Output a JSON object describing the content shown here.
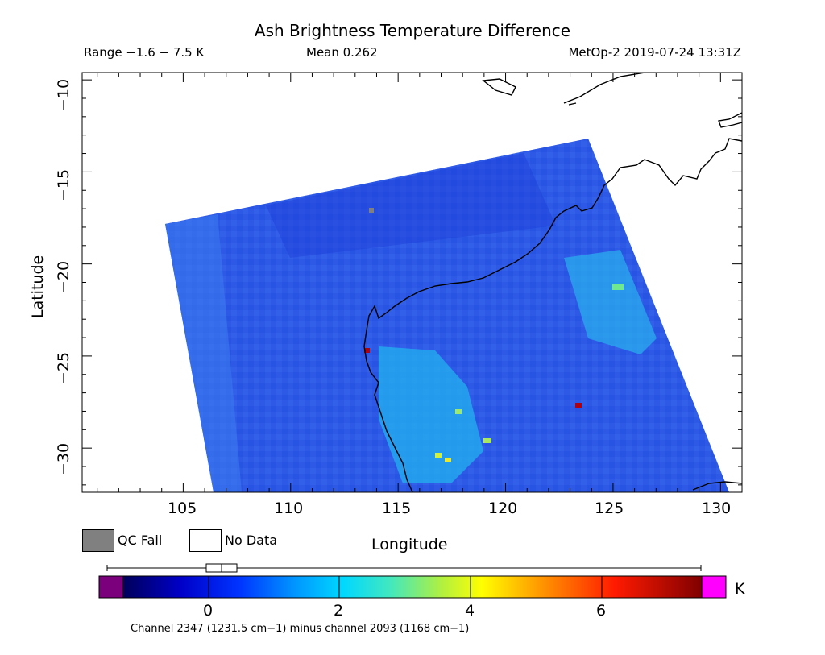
{
  "header": {
    "title": "Ash Brightness Temperature Difference",
    "range": "Range −1.6 − 7.5 K",
    "mean": "Mean 0.262",
    "satellite_time": "MetOp-2 2019-07-24 13:31Z"
  },
  "axes": {
    "xlabel": "Longitude",
    "ylabel": "Latitude",
    "xticks": [
      "105",
      "110",
      "115",
      "120",
      "125",
      "130"
    ],
    "yticks": [
      "−10",
      "−15",
      "−20",
      "−25",
      "−30"
    ],
    "lon_range": [
      100.3,
      131.0
    ],
    "lat_range": [
      -32.4,
      -9.6
    ]
  },
  "legend": {
    "qc_fail": "QC Fail",
    "no_data": "No Data",
    "qc_fail_color": "#808080",
    "no_data_color": "#ffffff"
  },
  "colorbar": {
    "unit": "K",
    "ticks": [
      "0",
      "2",
      "4",
      "6"
    ],
    "range": [
      -1.6,
      7.5
    ],
    "underflow_color": "#7b007b",
    "overflow_color": "#ff00ff",
    "caption": "Channel 2347 (1231.5 cm−1) minus channel 2093 (1168 cm−1)",
    "box_whisker": {
      "min": -1.6,
      "q1": -0.05,
      "median": 0.2,
      "q3": 0.45,
      "max": 7.5
    }
  },
  "colors": {
    "background_field": "#2a55e6",
    "coastline": "#000000"
  }
}
